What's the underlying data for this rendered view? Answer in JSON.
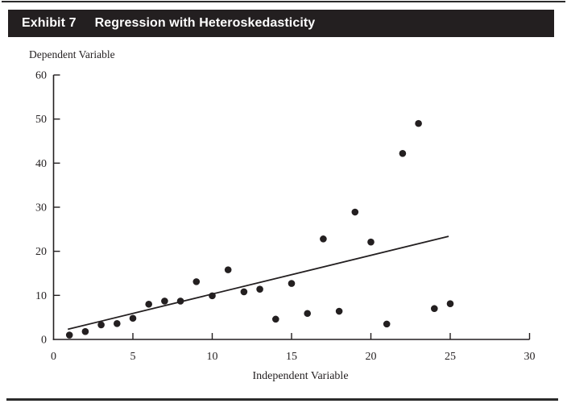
{
  "header": {
    "exhibit_label": "Exhibit 7",
    "title": "Regression with Heteroskedasticity"
  },
  "colors": {
    "header_bar": "#231f20",
    "header_text": "#ffffff",
    "ink": "#231f20",
    "background": "#ffffff"
  },
  "chart_data": {
    "type": "scatter",
    "title": "",
    "ylabel": "Dependent Variable",
    "xlabel": "Independent Variable",
    "xlim": [
      0,
      30
    ],
    "ylim": [
      0,
      60
    ],
    "x_ticks": [
      0,
      5,
      10,
      15,
      20,
      25,
      30
    ],
    "y_ticks": [
      0,
      10,
      20,
      30,
      40,
      50,
      60
    ],
    "grid": false,
    "legend": "none",
    "points": [
      [
        1,
        1.0
      ],
      [
        2,
        1.8
      ],
      [
        3,
        3.3
      ],
      [
        4,
        3.6
      ],
      [
        5,
        4.8
      ],
      [
        6,
        8.0
      ],
      [
        7,
        8.7
      ],
      [
        8,
        8.7
      ],
      [
        9,
        13.1
      ],
      [
        10,
        9.9
      ],
      [
        11,
        15.8
      ],
      [
        12,
        10.8
      ],
      [
        13,
        11.4
      ],
      [
        14,
        4.6
      ],
      [
        15,
        12.7
      ],
      [
        16,
        5.9
      ],
      [
        17,
        22.8
      ],
      [
        18,
        6.4
      ],
      [
        19,
        28.9
      ],
      [
        20,
        22.1
      ],
      [
        21,
        3.5
      ],
      [
        22,
        42.2
      ],
      [
        23,
        49.0
      ],
      [
        24,
        7.0
      ],
      [
        25,
        8.1
      ]
    ],
    "regression_line": {
      "x_start": 0.9,
      "y_start": 2.3,
      "x_end": 24.9,
      "y_end": 23.4
    }
  }
}
